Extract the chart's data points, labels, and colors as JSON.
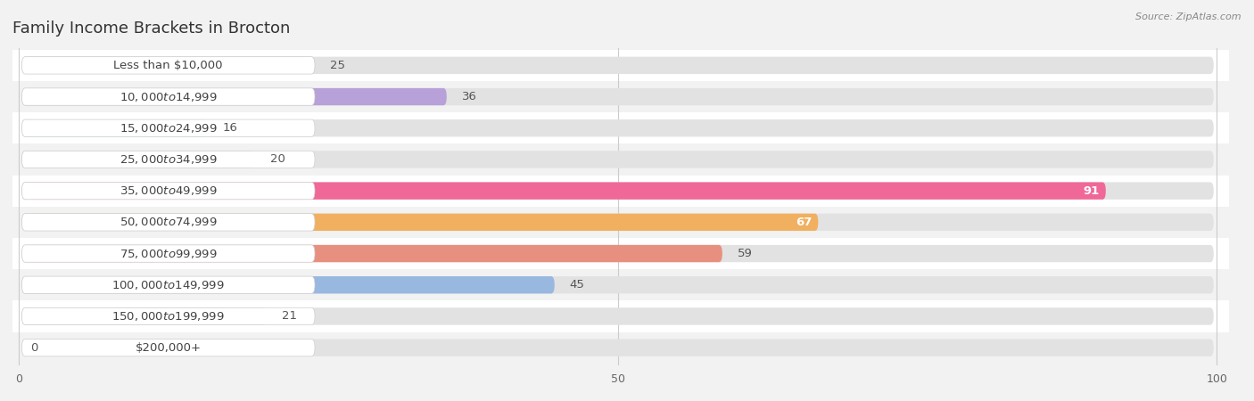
{
  "title": "Family Income Brackets in Brocton",
  "source": "Source: ZipAtlas.com",
  "categories": [
    "Less than $10,000",
    "$10,000 to $14,999",
    "$15,000 to $24,999",
    "$25,000 to $34,999",
    "$35,000 to $49,999",
    "$50,000 to $74,999",
    "$75,000 to $99,999",
    "$100,000 to $149,999",
    "$150,000 to $199,999",
    "$200,000+"
  ],
  "values": [
    25,
    36,
    16,
    20,
    91,
    67,
    59,
    45,
    21,
    0
  ],
  "bar_colors": [
    "#8ec5e8",
    "#b8a0d8",
    "#68ccc8",
    "#a8b0e0",
    "#f06898",
    "#f0b060",
    "#e89080",
    "#98b8e0",
    "#c098d0",
    "#78c8c8"
  ],
  "xlim": [
    0,
    100
  ],
  "bg_color": "#f2f2f2",
  "row_bg_even": "#ffffff",
  "row_bg_odd": "#f2f2f2",
  "bar_bg_color": "#e2e2e2",
  "label_bg_color": "#ffffff",
  "label_border_color": "#d0d0d0",
  "title_fontsize": 13,
  "label_fontsize": 9.5,
  "value_fontsize": 9.5,
  "source_fontsize": 8
}
